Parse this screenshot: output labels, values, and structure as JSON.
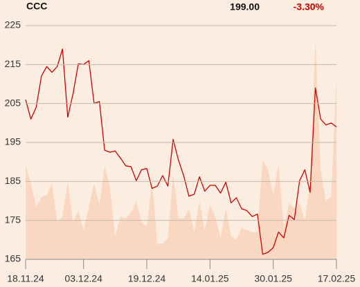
{
  "chart_data": {
    "type": "line",
    "title": "CCC",
    "price": "199.00",
    "change": "-3.30%",
    "categories": [
      "18.11.24",
      null,
      null,
      null,
      null,
      null,
      null,
      null,
      null,
      null,
      null,
      "03.12.24",
      null,
      null,
      null,
      null,
      null,
      null,
      null,
      null,
      null,
      null,
      null,
      "19.12.24",
      null,
      null,
      null,
      null,
      null,
      null,
      null,
      null,
      null,
      null,
      null,
      "14.01.25",
      null,
      null,
      null,
      null,
      null,
      null,
      null,
      null,
      null,
      null,
      null,
      "30.01.25",
      null,
      null,
      null,
      null,
      null,
      null,
      null,
      null,
      null,
      null,
      null,
      "17.02.25"
    ],
    "series": [
      {
        "name": "Volume",
        "kind": "area",
        "color": "#fad7c1",
        "values": [
          189,
          184.5,
          178.5,
          181,
          181.5,
          184.5,
          174.5,
          176,
          185,
          174.5,
          177.5,
          172.5,
          178.5,
          184.5,
          179,
          189,
          183.5,
          171,
          176,
          175.5,
          177,
          180,
          174.5,
          173.5,
          185,
          169,
          169,
          170.5,
          187,
          175.5,
          175.5,
          178,
          172,
          180,
          172.5,
          179,
          176,
          170.5,
          178,
          171,
          170,
          173,
          172.5,
          172,
          172,
          190.5,
          188,
          181.5,
          189.5,
          173,
          179.5,
          178,
          179.5,
          175,
          184.5,
          221.5,
          188,
          180,
          181,
          212
        ]
      },
      {
        "name": "Price",
        "kind": "line",
        "color": "#cc0000",
        "values": [
          206,
          201,
          204,
          212,
          214.5,
          213,
          214.5,
          219,
          201.5,
          207.5,
          215.2,
          215,
          216,
          205,
          205.5,
          193,
          192.5,
          192.8,
          191,
          189,
          188.8,
          185.2,
          188,
          188.3,
          183.2,
          183.8,
          186.5,
          183.8,
          195.8,
          190.5,
          186.5,
          181.2,
          181.7,
          186.2,
          182.5,
          184,
          184,
          182,
          184.8,
          179.5,
          180.8,
          178,
          177.5,
          176,
          176.6,
          166.3,
          166.8,
          168,
          172,
          170.5,
          176.3,
          175.2,
          185.2,
          188,
          182.2,
          209,
          201,
          199.5,
          200,
          199
        ]
      }
    ],
    "ylim": [
      165,
      225
    ],
    "yticks": [
      165,
      175,
      185,
      195,
      205,
      215,
      225
    ],
    "grid": true
  }
}
